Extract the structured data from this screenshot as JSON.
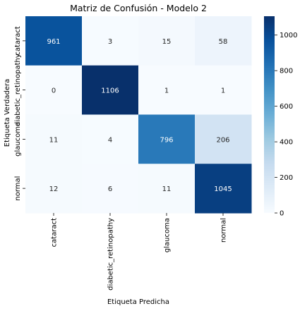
{
  "chart_data": {
    "type": "heatmap",
    "title": "Matriz de Confusión - Modelo 2",
    "xlabel": "Etiqueta Predicha",
    "ylabel": "Etiqueta Verdadera",
    "x_categories": [
      "cataract",
      "diabetic_retinopathy",
      "glaucoma",
      "normal"
    ],
    "y_categories": [
      "cataract",
      "diabetic_retinopathy",
      "glaucoma",
      "normal"
    ],
    "values": [
      [
        961,
        3,
        15,
        58
      ],
      [
        0,
        1106,
        1,
        1
      ],
      [
        11,
        4,
        796,
        206
      ],
      [
        12,
        6,
        11,
        1045
      ]
    ],
    "colorbar": {
      "colormap": "Blues",
      "range": [
        0,
        1106
      ],
      "ticks": [
        0,
        200,
        400,
        600,
        800,
        1000
      ]
    },
    "grid": false,
    "legend": "colorbar-right"
  }
}
